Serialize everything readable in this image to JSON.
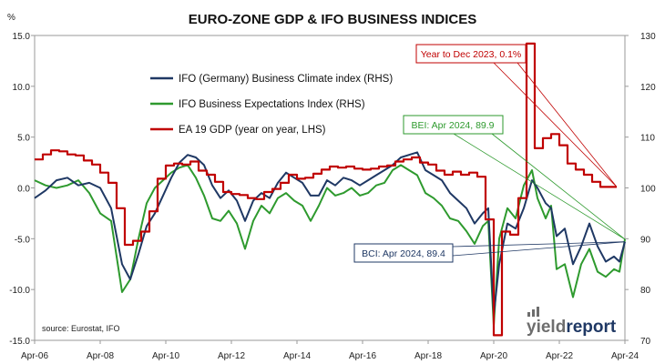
{
  "chart_data": {
    "type": "line",
    "title": "EURO-ZONE GDP & IFO BUSINESS INDICES",
    "left_axis": {
      "unit_label": "%",
      "ylim": [
        -15,
        15
      ],
      "ticks": [
        "15.0",
        "10.0",
        "5.0",
        "0.0",
        "-5.0",
        "-10.0",
        "-15.0"
      ]
    },
    "right_axis": {
      "ylim": [
        70,
        130
      ],
      "ticks": [
        "130",
        "120",
        "110",
        "100",
        "90",
        "80",
        "70"
      ]
    },
    "x_ticks": [
      "Apr-06",
      "Apr-08",
      "Apr-10",
      "Apr-12",
      "Apr-14",
      "Apr-16",
      "Apr-18",
      "Apr-20",
      "Apr-22",
      "Apr-24"
    ],
    "x_range": [
      "2006-04",
      "2024-04"
    ],
    "legend_placement": "top-left",
    "grid": false,
    "series": [
      {
        "name": "IFO (Germany) Business Climate index (RHS)",
        "axis": "right",
        "color": "#1f3864",
        "points": [
          [
            "2006-04",
            98.0
          ],
          [
            "2006-08",
            99.5
          ],
          [
            "2006-12",
            101.5
          ],
          [
            "2007-04",
            102.0
          ],
          [
            "2007-08",
            100.5
          ],
          [
            "2007-12",
            101.0
          ],
          [
            "2008-04",
            100.0
          ],
          [
            "2008-08",
            96.0
          ],
          [
            "2008-12",
            85.0
          ],
          [
            "2009-03",
            82.0
          ],
          [
            "2009-06",
            87.0
          ],
          [
            "2009-09",
            92.5
          ],
          [
            "2009-12",
            95.0
          ],
          [
            "2010-03",
            98.5
          ],
          [
            "2010-06",
            102.0
          ],
          [
            "2010-09",
            105.0
          ],
          [
            "2010-12",
            106.5
          ],
          [
            "2011-03",
            106.0
          ],
          [
            "2011-06",
            104.5
          ],
          [
            "2011-09",
            100.5
          ],
          [
            "2011-12",
            98.0
          ],
          [
            "2012-03",
            99.5
          ],
          [
            "2012-06",
            97.5
          ],
          [
            "2012-09",
            93.5
          ],
          [
            "2012-12",
            97.5
          ],
          [
            "2013-03",
            99.0
          ],
          [
            "2013-06",
            98.0
          ],
          [
            "2013-09",
            101.0
          ],
          [
            "2013-12",
            103.0
          ],
          [
            "2014-03",
            102.0
          ],
          [
            "2014-06",
            101.0
          ],
          [
            "2014-09",
            98.5
          ],
          [
            "2014-12",
            98.5
          ],
          [
            "2015-03",
            101.5
          ],
          [
            "2015-06",
            100.5
          ],
          [
            "2015-09",
            102.0
          ],
          [
            "2015-12",
            101.5
          ],
          [
            "2016-03",
            100.5
          ],
          [
            "2016-06",
            101.5
          ],
          [
            "2016-09",
            102.5
          ],
          [
            "2016-12",
            103.5
          ],
          [
            "2017-03",
            104.5
          ],
          [
            "2017-06",
            106.0
          ],
          [
            "2017-09",
            106.5
          ],
          [
            "2017-12",
            107.0
          ],
          [
            "2018-03",
            103.5
          ],
          [
            "2018-06",
            102.5
          ],
          [
            "2018-09",
            101.5
          ],
          [
            "2018-12",
            99.0
          ],
          [
            "2019-03",
            97.5
          ],
          [
            "2019-06",
            96.0
          ],
          [
            "2019-09",
            93.0
          ],
          [
            "2019-12",
            95.0
          ],
          [
            "2020-02",
            96.0
          ],
          [
            "2020-04",
            75.0
          ],
          [
            "2020-06",
            85.0
          ],
          [
            "2020-09",
            93.0
          ],
          [
            "2020-12",
            92.0
          ],
          [
            "2021-03",
            96.0
          ],
          [
            "2021-06",
            101.5
          ],
          [
            "2021-08",
            100.0
          ],
          [
            "2021-11",
            97.0
          ],
          [
            "2022-01",
            96.0
          ],
          [
            "2022-03",
            90.5
          ],
          [
            "2022-06",
            92.0
          ],
          [
            "2022-09",
            85.0
          ],
          [
            "2022-12",
            88.5
          ],
          [
            "2023-03",
            93.0
          ],
          [
            "2023-06",
            88.5
          ],
          [
            "2023-09",
            85.5
          ],
          [
            "2023-12",
            86.5
          ],
          [
            "2024-02",
            85.5
          ],
          [
            "2024-04",
            89.4
          ]
        ]
      },
      {
        "name": "IFO Business Expectations Index (RHS)",
        "axis": "right",
        "color": "#2e9a2e",
        "points": [
          [
            "2006-04",
            101.5
          ],
          [
            "2006-08",
            100.5
          ],
          [
            "2006-12",
            100.0
          ],
          [
            "2007-04",
            100.5
          ],
          [
            "2007-08",
            101.5
          ],
          [
            "2007-12",
            99.0
          ],
          [
            "2008-04",
            95.0
          ],
          [
            "2008-08",
            93.5
          ],
          [
            "2008-12",
            79.5
          ],
          [
            "2009-03",
            82.0
          ],
          [
            "2009-06",
            90.0
          ],
          [
            "2009-09",
            97.0
          ],
          [
            "2009-12",
            100.0
          ],
          [
            "2010-03",
            101.5
          ],
          [
            "2010-06",
            103.0
          ],
          [
            "2010-09",
            104.0
          ],
          [
            "2010-12",
            104.5
          ],
          [
            "2011-03",
            102.0
          ],
          [
            "2011-06",
            98.5
          ],
          [
            "2011-09",
            94.0
          ],
          [
            "2011-12",
            93.5
          ],
          [
            "2012-03",
            95.5
          ],
          [
            "2012-06",
            93.0
          ],
          [
            "2012-09",
            88.0
          ],
          [
            "2012-12",
            93.5
          ],
          [
            "2013-03",
            96.5
          ],
          [
            "2013-06",
            95.0
          ],
          [
            "2013-09",
            98.0
          ],
          [
            "2013-12",
            99.0
          ],
          [
            "2014-03",
            97.5
          ],
          [
            "2014-06",
            96.5
          ],
          [
            "2014-09",
            93.5
          ],
          [
            "2014-12",
            96.5
          ],
          [
            "2015-03",
            100.0
          ],
          [
            "2015-06",
            98.5
          ],
          [
            "2015-09",
            99.0
          ],
          [
            "2015-12",
            100.0
          ],
          [
            "2016-03",
            98.5
          ],
          [
            "2016-06",
            99.0
          ],
          [
            "2016-09",
            100.5
          ],
          [
            "2016-12",
            101.0
          ],
          [
            "2017-03",
            103.5
          ],
          [
            "2017-06",
            104.5
          ],
          [
            "2017-09",
            103.5
          ],
          [
            "2017-12",
            102.5
          ],
          [
            "2018-03",
            99.0
          ],
          [
            "2018-06",
            98.0
          ],
          [
            "2018-09",
            96.5
          ],
          [
            "2018-12",
            94.0
          ],
          [
            "2019-03",
            93.5
          ],
          [
            "2019-06",
            91.5
          ],
          [
            "2019-09",
            89.0
          ],
          [
            "2019-12",
            92.5
          ],
          [
            "2020-02",
            93.5
          ],
          [
            "2020-04",
            73.0
          ],
          [
            "2020-06",
            90.0
          ],
          [
            "2020-09",
            96.0
          ],
          [
            "2020-12",
            94.0
          ],
          [
            "2021-03",
            100.5
          ],
          [
            "2021-06",
            103.5
          ],
          [
            "2021-08",
            98.0
          ],
          [
            "2021-11",
            94.0
          ],
          [
            "2022-01",
            96.5
          ],
          [
            "2022-03",
            84.0
          ],
          [
            "2022-06",
            85.0
          ],
          [
            "2022-09",
            78.5
          ],
          [
            "2022-12",
            85.0
          ],
          [
            "2023-03",
            88.0
          ],
          [
            "2023-06",
            83.5
          ],
          [
            "2023-09",
            82.5
          ],
          [
            "2023-12",
            84.0
          ],
          [
            "2024-02",
            83.5
          ],
          [
            "2024-04",
            89.9
          ]
        ]
      },
      {
        "name": "EA 19 GDP (year on year, LHS)",
        "axis": "left",
        "color": "#c00000",
        "points": [
          [
            "2006-04",
            2.8
          ],
          [
            "2006-07",
            3.3
          ],
          [
            "2006-10",
            3.7
          ],
          [
            "2007-01",
            3.6
          ],
          [
            "2007-04",
            3.3
          ],
          [
            "2007-07",
            3.2
          ],
          [
            "2007-10",
            2.7
          ],
          [
            "2008-01",
            2.3
          ],
          [
            "2008-04",
            1.5
          ],
          [
            "2008-07",
            0.5
          ],
          [
            "2008-10",
            -2.0
          ],
          [
            "2009-01",
            -5.6
          ],
          [
            "2009-04",
            -5.2
          ],
          [
            "2009-07",
            -4.3
          ],
          [
            "2009-10",
            -2.3
          ],
          [
            "2010-01",
            0.9
          ],
          [
            "2010-04",
            2.2
          ],
          [
            "2010-07",
            2.4
          ],
          [
            "2010-10",
            2.3
          ],
          [
            "2011-01",
            2.6
          ],
          [
            "2011-04",
            1.7
          ],
          [
            "2011-07",
            1.3
          ],
          [
            "2011-10",
            0.6
          ],
          [
            "2012-01",
            -0.4
          ],
          [
            "2012-04",
            -0.6
          ],
          [
            "2012-07",
            -0.7
          ],
          [
            "2012-10",
            -1.0
          ],
          [
            "2013-01",
            -1.1
          ],
          [
            "2013-04",
            -0.4
          ],
          [
            "2013-07",
            -0.1
          ],
          [
            "2013-10",
            0.5
          ],
          [
            "2014-01",
            1.3
          ],
          [
            "2014-04",
            0.9
          ],
          [
            "2014-07",
            1.0
          ],
          [
            "2014-10",
            1.4
          ],
          [
            "2015-01",
            1.8
          ],
          [
            "2015-04",
            2.1
          ],
          [
            "2015-07",
            2.0
          ],
          [
            "2015-10",
            2.1
          ],
          [
            "2016-01",
            1.9
          ],
          [
            "2016-04",
            1.8
          ],
          [
            "2016-07",
            1.9
          ],
          [
            "2016-10",
            2.1
          ],
          [
            "2017-01",
            2.2
          ],
          [
            "2017-04",
            2.6
          ],
          [
            "2017-07",
            2.8
          ],
          [
            "2017-10",
            3.0
          ],
          [
            "2018-01",
            2.5
          ],
          [
            "2018-04",
            2.3
          ],
          [
            "2018-07",
            1.7
          ],
          [
            "2018-10",
            1.3
          ],
          [
            "2019-01",
            1.6
          ],
          [
            "2019-04",
            1.3
          ],
          [
            "2019-07",
            1.5
          ],
          [
            "2019-10",
            1.1
          ],
          [
            "2020-01",
            -3.1
          ],
          [
            "2020-04",
            -14.5
          ],
          [
            "2020-07",
            -4.3
          ],
          [
            "2020-10",
            -4.6
          ],
          [
            "2021-01",
            -1.0
          ],
          [
            "2021-04",
            14.2
          ],
          [
            "2021-07",
            3.9
          ],
          [
            "2021-10",
            4.9
          ],
          [
            "2022-01",
            5.3
          ],
          [
            "2022-04",
            4.2
          ],
          [
            "2022-07",
            2.4
          ],
          [
            "2022-10",
            1.8
          ],
          [
            "2023-01",
            1.3
          ],
          [
            "2023-04",
            0.6
          ],
          [
            "2023-07",
            0.1
          ],
          [
            "2023-10",
            0.1
          ]
        ]
      }
    ],
    "annotations": [
      {
        "label": "Year to Dec 2023, 0.1%",
        "color": "#c00000"
      },
      {
        "label": "BEI: Apr 2024, 89.9",
        "color": "#2e9a2e"
      },
      {
        "label": "BCI: Apr 2024, 89.4",
        "color": "#1f3864"
      }
    ],
    "source": "source: Eurostat, IFO",
    "logo": {
      "part1": "yield",
      "part2": "report",
      "color1": "#6e6e6e",
      "color2": "#1f3864"
    }
  }
}
